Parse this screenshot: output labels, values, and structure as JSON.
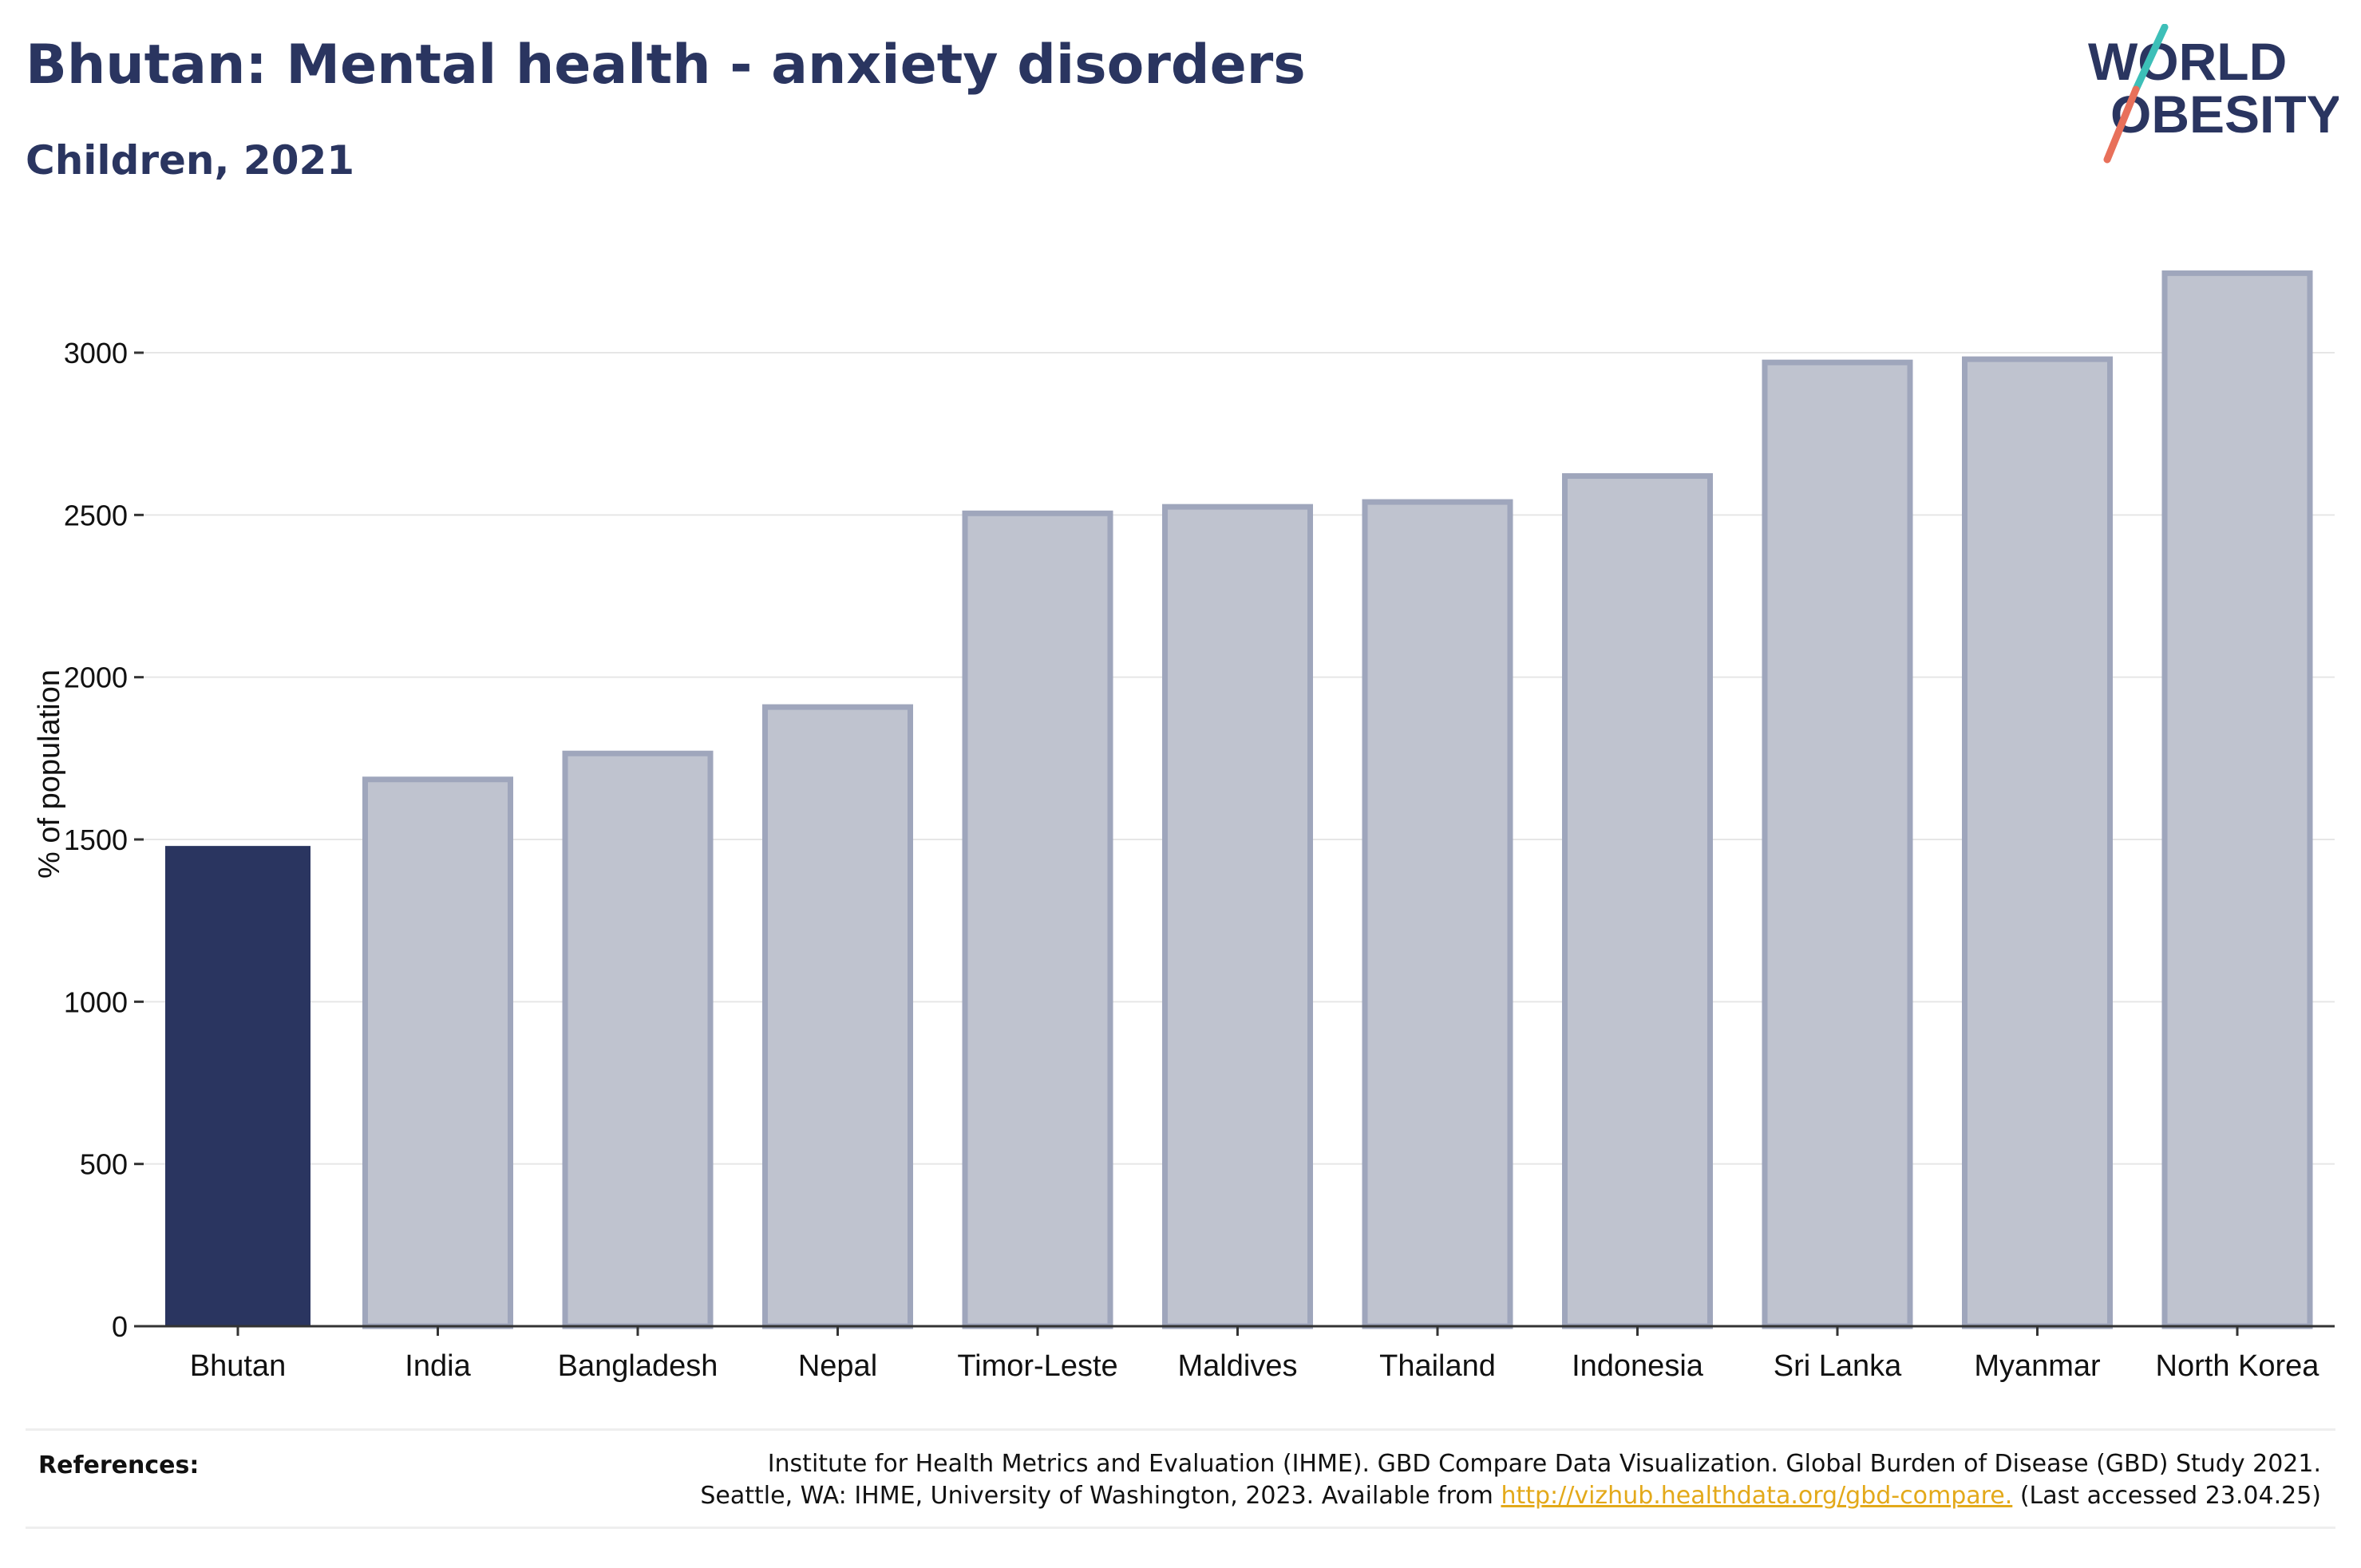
{
  "header": {
    "title": "Bhutan: Mental health - anxiety disorders",
    "subtitle": "Children, 2021"
  },
  "logo": {
    "line1": "WORLD",
    "line2": "OBESITY",
    "text_color": "#2a3560",
    "slash_colors": [
      "#3dbfb8",
      "#e8705a"
    ]
  },
  "colors": {
    "highlight_bar": "#2a3560",
    "other_bar_fill": "#bfc3cf",
    "other_bar_stroke": "#9fa6bc",
    "grid": "#e6e6e6",
    "axis": "#333333"
  },
  "chart_data": {
    "type": "bar",
    "categories": [
      "Bhutan",
      "India",
      "Bangladesh",
      "Nepal",
      "Timor-Leste",
      "Maldives",
      "Thailand",
      "Indonesia",
      "Sri Lanka",
      "Myanmar",
      "North Korea"
    ],
    "values": [
      1480,
      1685,
      1765,
      1908,
      2505,
      2525,
      2540,
      2620,
      2970,
      2980,
      3245
    ],
    "highlight": "Bhutan",
    "ylabel": "% of population",
    "xlabel": "",
    "ylim": [
      0,
      3300
    ],
    "yticks": [
      0,
      500,
      1000,
      1500,
      2000,
      2500,
      3000
    ],
    "grid": true,
    "legend": "none"
  },
  "references": {
    "label": "References:",
    "line1": "Institute for Health Metrics and Evaluation (IHME). GBD Compare Data Visualization. Global Burden of Disease (GBD) Study 2021.",
    "line2_prefix": "Seattle, WA: IHME, University of Washington, 2023. Available from ",
    "link": "http://vizhub.healthdata.org/gbd-compare.",
    "line2_suffix": " (Last accessed 23.04.25)"
  }
}
